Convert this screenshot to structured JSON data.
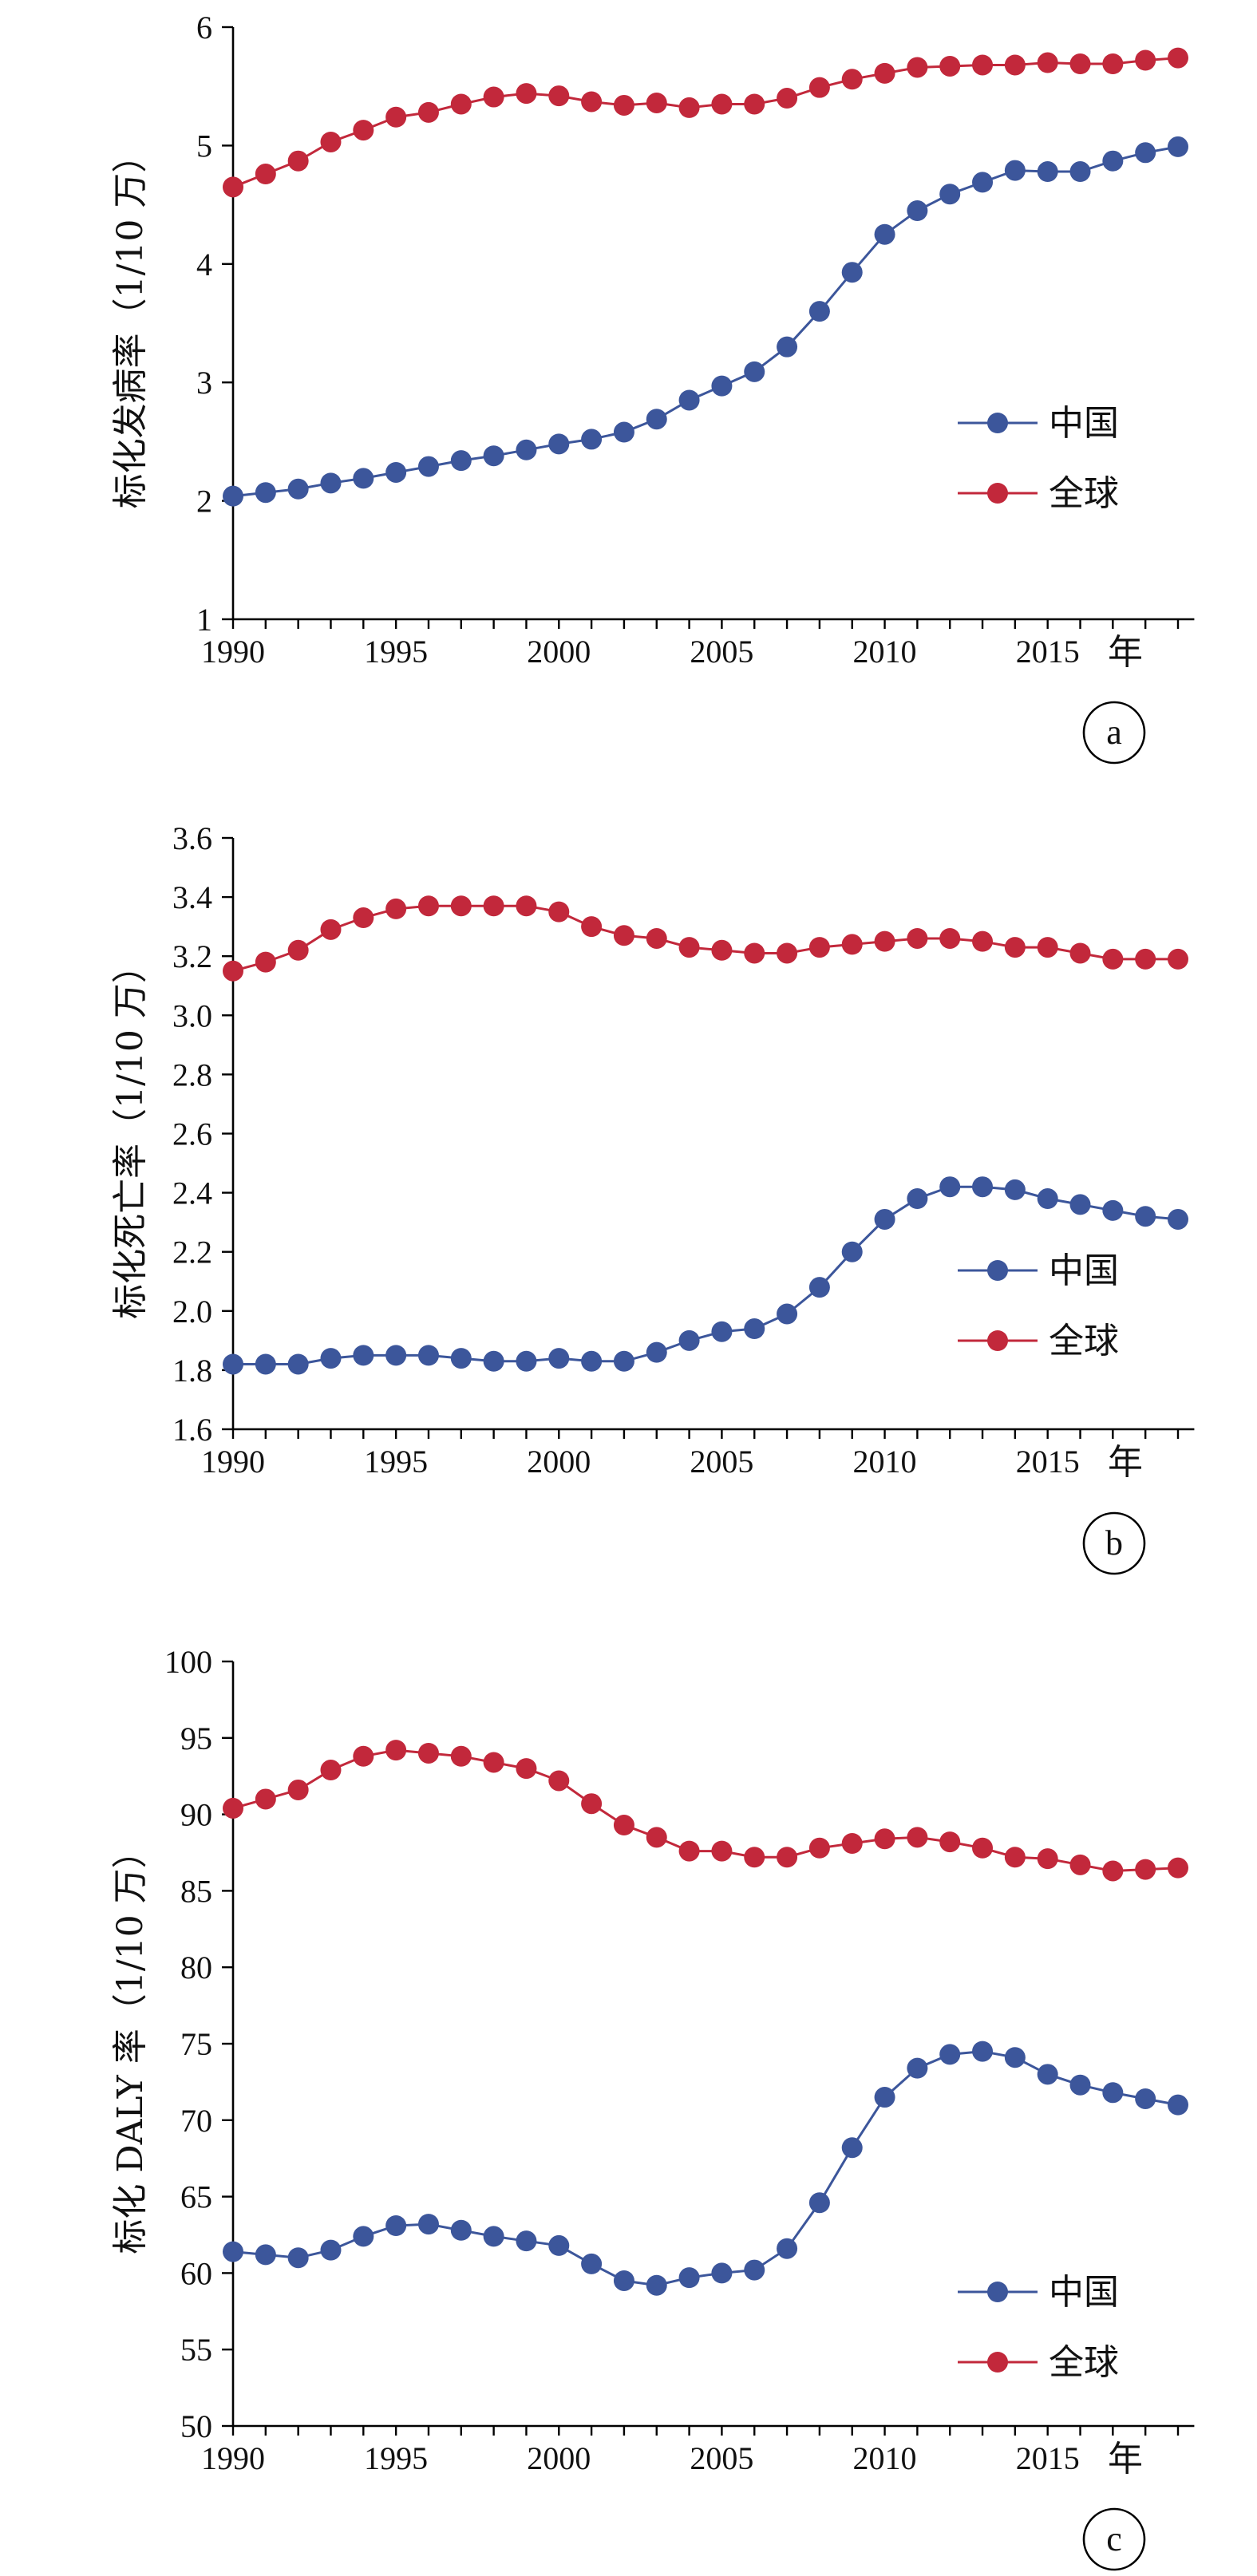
{
  "colors": {
    "china": "#3c569b",
    "global": "#c2283b"
  },
  "chart_data": [
    {
      "type": "line",
      "panel_label": "a",
      "ylabel": "标化发病率（1/10 万）",
      "x_unit": "年",
      "x": [
        1990,
        1991,
        1992,
        1993,
        1994,
        1995,
        1996,
        1997,
        1998,
        1999,
        2000,
        2001,
        2002,
        2003,
        2004,
        2005,
        2006,
        2007,
        2008,
        2009,
        2010,
        2011,
        2012,
        2013,
        2014,
        2015,
        2016,
        2017,
        2018,
        2019
      ],
      "xlim": [
        1990,
        2019
      ],
      "x_ticks": [
        1990,
        1995,
        2000,
        2005,
        2010,
        2015
      ],
      "ylim": [
        1,
        6
      ],
      "y_ticks": [
        1,
        2,
        3,
        4,
        5,
        6
      ],
      "y_tick_decimals": 0,
      "legend_position": "right",
      "series": [
        {
          "name": "中国",
          "color_key": "china",
          "values": [
            2.04,
            2.07,
            2.1,
            2.15,
            2.19,
            2.24,
            2.29,
            2.34,
            2.38,
            2.43,
            2.48,
            2.52,
            2.58,
            2.69,
            2.85,
            2.97,
            3.09,
            3.3,
            3.6,
            3.93,
            4.25,
            4.45,
            4.59,
            4.69,
            4.79,
            4.78,
            4.78,
            4.87,
            4.94,
            4.99
          ]
        },
        {
          "name": "全球",
          "color_key": "global",
          "values": [
            4.65,
            4.76,
            4.87,
            5.03,
            5.13,
            5.24,
            5.28,
            5.35,
            5.41,
            5.44,
            5.42,
            5.37,
            5.34,
            5.36,
            5.32,
            5.35,
            5.35,
            5.4,
            5.49,
            5.56,
            5.61,
            5.66,
            5.67,
            5.68,
            5.68,
            5.7,
            5.69,
            5.69,
            5.72,
            5.74
          ]
        }
      ]
    },
    {
      "type": "line",
      "panel_label": "b",
      "ylabel": "标化死亡率（1/10 万）",
      "x_unit": "年",
      "x": [
        1990,
        1991,
        1992,
        1993,
        1994,
        1995,
        1996,
        1997,
        1998,
        1999,
        2000,
        2001,
        2002,
        2003,
        2004,
        2005,
        2006,
        2007,
        2008,
        2009,
        2010,
        2011,
        2012,
        2013,
        2014,
        2015,
        2016,
        2017,
        2018,
        2019
      ],
      "xlim": [
        1990,
        2019
      ],
      "x_ticks": [
        1990,
        1995,
        2000,
        2005,
        2010,
        2015
      ],
      "ylim": [
        1.6,
        3.6
      ],
      "y_ticks": [
        1.6,
        1.8,
        2.0,
        2.2,
        2.4,
        2.6,
        2.8,
        3.0,
        3.2,
        3.4,
        3.6
      ],
      "y_tick_decimals": 1,
      "legend_position": "right",
      "series": [
        {
          "name": "中国",
          "color_key": "china",
          "values": [
            1.82,
            1.82,
            1.82,
            1.84,
            1.85,
            1.85,
            1.85,
            1.84,
            1.83,
            1.83,
            1.84,
            1.83,
            1.83,
            1.86,
            1.9,
            1.93,
            1.94,
            1.99,
            2.08,
            2.2,
            2.31,
            2.38,
            2.42,
            2.42,
            2.41,
            2.38,
            2.36,
            2.34,
            2.32,
            2.31
          ]
        },
        {
          "name": "全球",
          "color_key": "global",
          "values": [
            3.15,
            3.18,
            3.22,
            3.29,
            3.33,
            3.36,
            3.37,
            3.37,
            3.37,
            3.37,
            3.35,
            3.3,
            3.27,
            3.26,
            3.23,
            3.22,
            3.21,
            3.21,
            3.23,
            3.24,
            3.25,
            3.26,
            3.26,
            3.25,
            3.23,
            3.23,
            3.21,
            3.19,
            3.19,
            3.19
          ]
        }
      ]
    },
    {
      "type": "line",
      "panel_label": "c",
      "ylabel": "标化 DALY 率（1/10 万）",
      "x_unit": "年",
      "x": [
        1990,
        1991,
        1992,
        1993,
        1994,
        1995,
        1996,
        1997,
        1998,
        1999,
        2000,
        2001,
        2002,
        2003,
        2004,
        2005,
        2006,
        2007,
        2008,
        2009,
        2010,
        2011,
        2012,
        2013,
        2014,
        2015,
        2016,
        2017,
        2018,
        2019
      ],
      "xlim": [
        1990,
        2019
      ],
      "x_ticks": [
        1990,
        1995,
        2000,
        2005,
        2010,
        2015
      ],
      "ylim": [
        50,
        100
      ],
      "y_ticks": [
        50,
        55,
        60,
        65,
        70,
        75,
        80,
        85,
        90,
        95,
        100
      ],
      "y_tick_decimals": 0,
      "legend_position": "bottom-right",
      "series": [
        {
          "name": "中国",
          "color_key": "china",
          "values": [
            61.4,
            61.2,
            61.0,
            61.5,
            62.4,
            63.1,
            63.2,
            62.8,
            62.4,
            62.1,
            61.8,
            60.6,
            59.5,
            59.2,
            59.7,
            60.0,
            60.2,
            61.6,
            64.6,
            68.2,
            71.5,
            73.4,
            74.3,
            74.5,
            74.1,
            73.0,
            72.3,
            71.8,
            71.4,
            71.0
          ]
        },
        {
          "name": "全球",
          "color_key": "global",
          "values": [
            90.4,
            91.0,
            91.6,
            92.9,
            93.8,
            94.2,
            94.0,
            93.8,
            93.4,
            93.0,
            92.2,
            90.7,
            89.3,
            88.5,
            87.6,
            87.6,
            87.2,
            87.2,
            87.8,
            88.1,
            88.4,
            88.5,
            88.2,
            87.8,
            87.2,
            87.1,
            86.7,
            86.3,
            86.4,
            86.5
          ]
        }
      ]
    }
  ]
}
